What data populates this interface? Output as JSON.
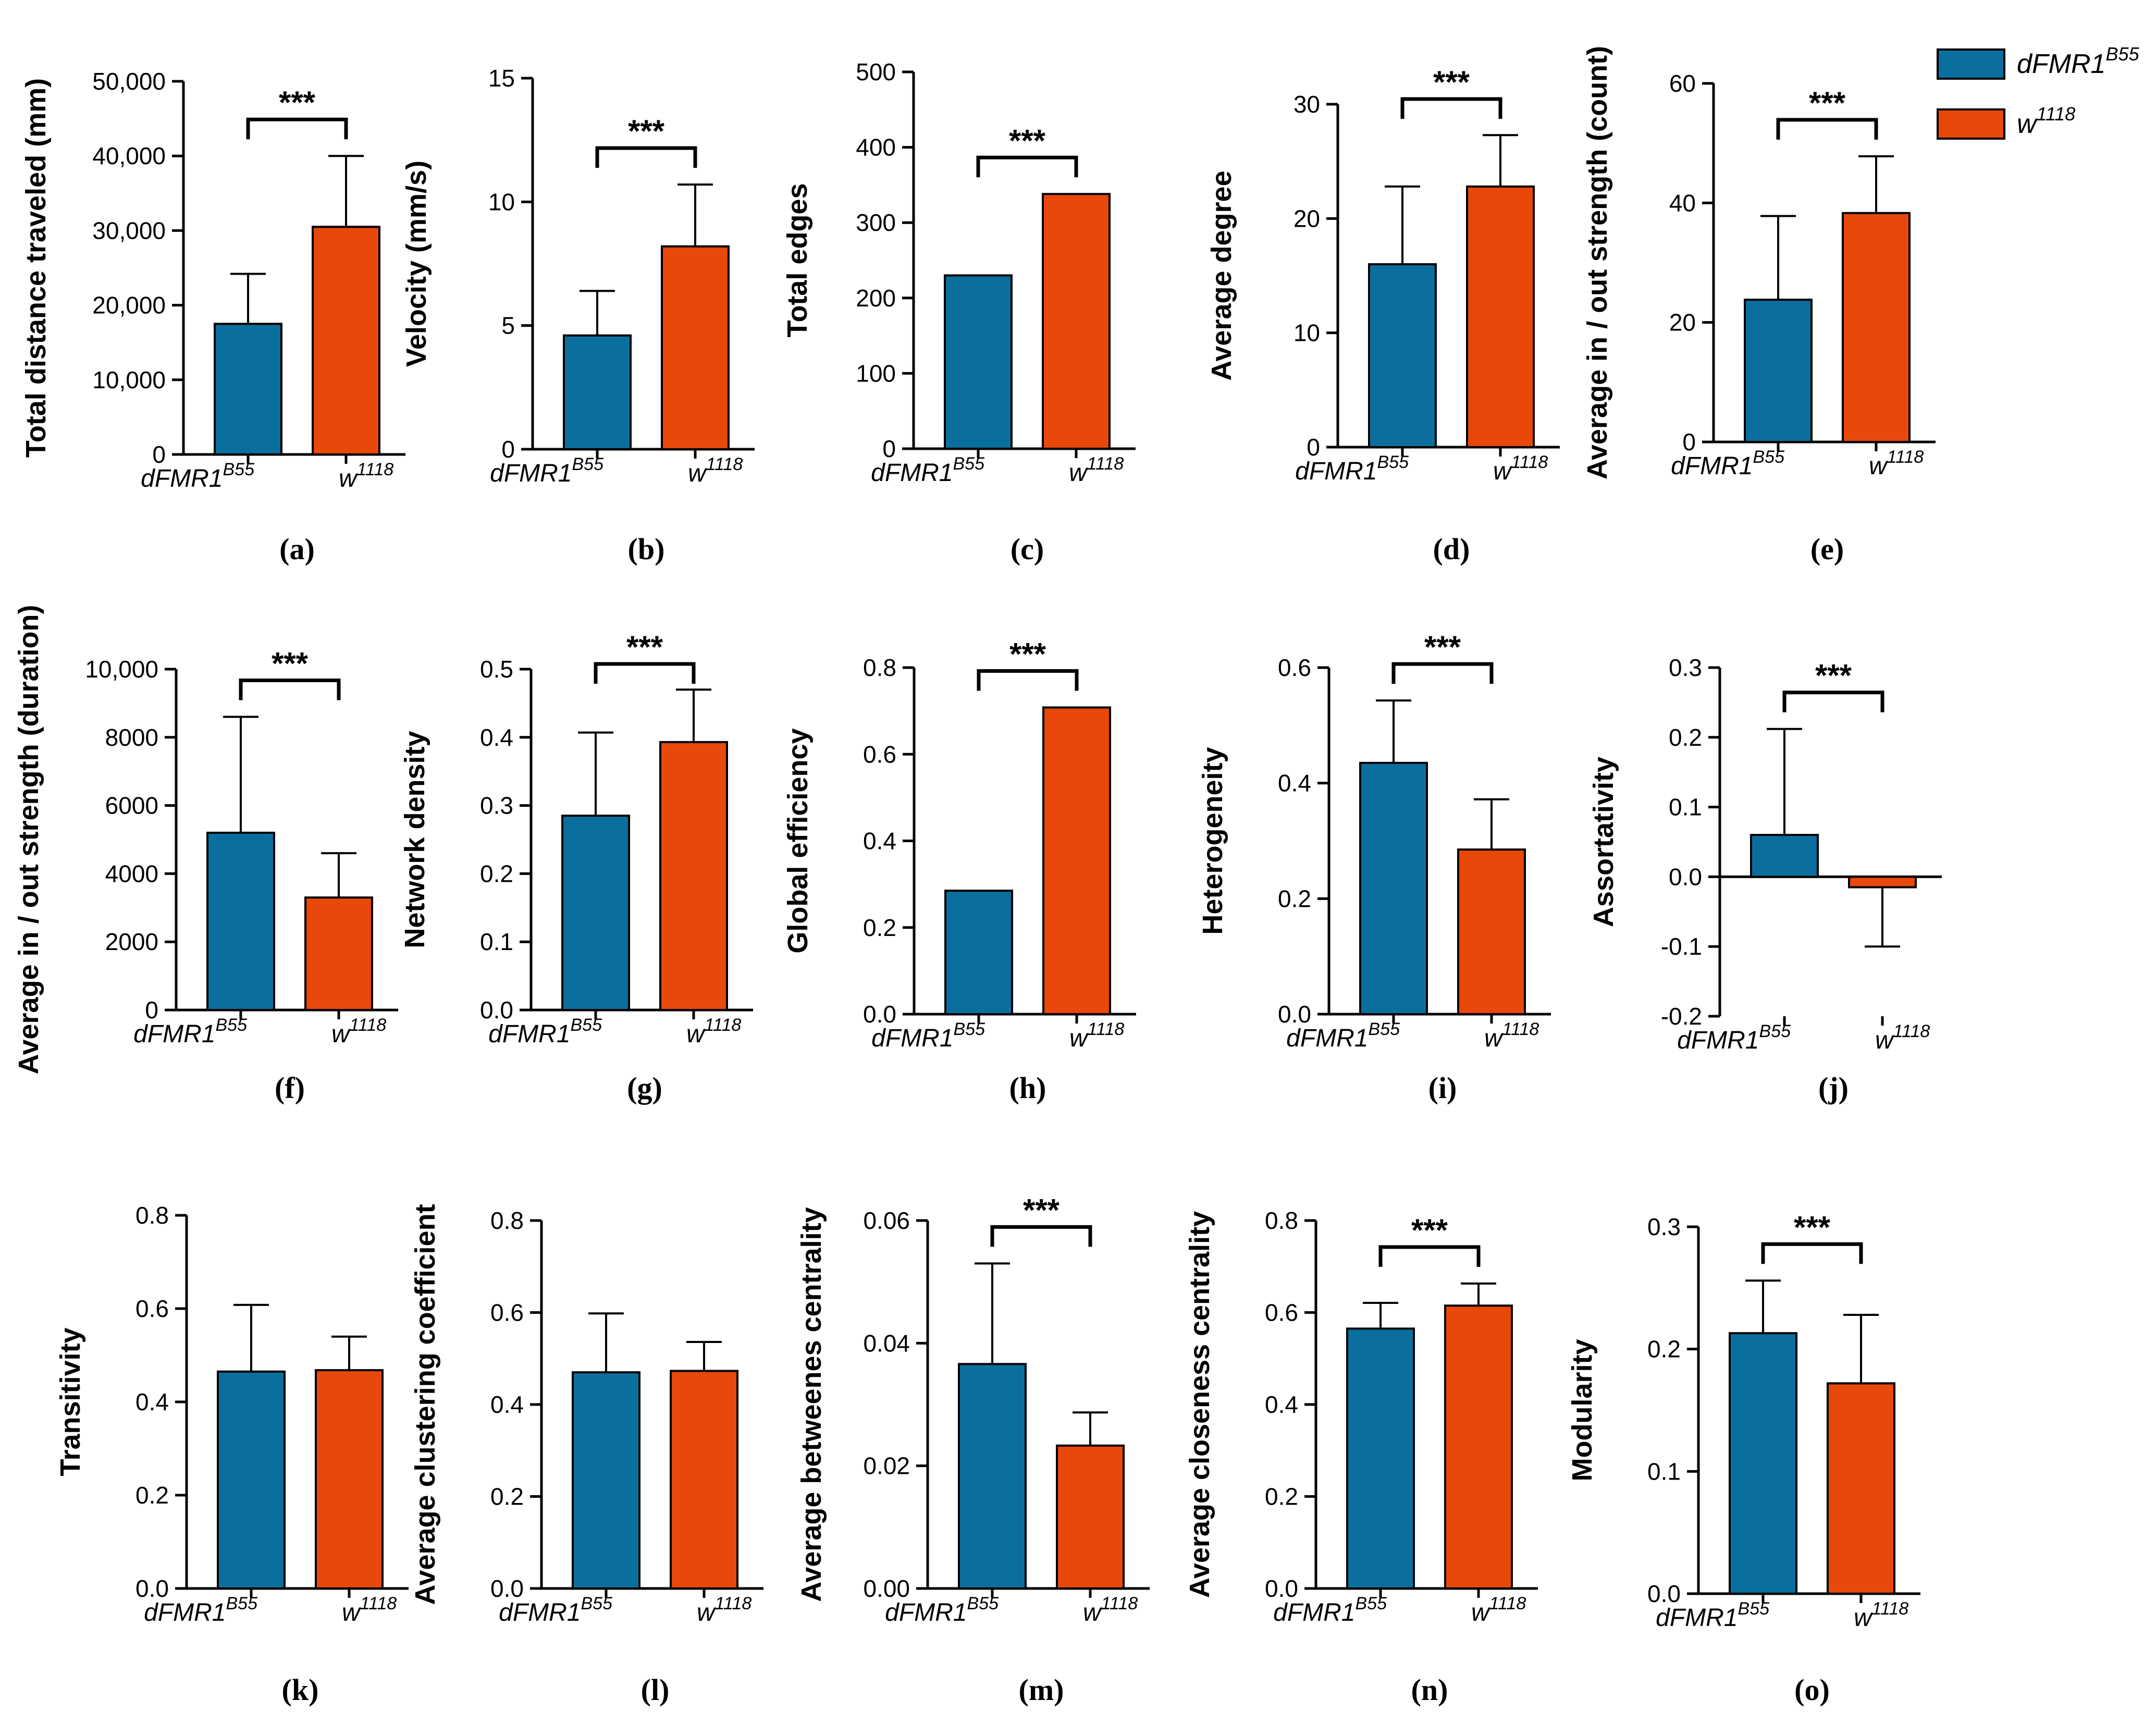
{
  "colors": {
    "dFMR1": "#0b6f9e",
    "w1118": "#e8480a"
  },
  "legend": {
    "items": [
      {
        "base": "dFMR1",
        "sup": "B55",
        "color": "#0b6f9e"
      },
      {
        "base": "w",
        "sup": "1118",
        "color": "#e8480a"
      }
    ]
  },
  "chart_data": [
    {
      "panel": "(a)",
      "type": "bar",
      "ylabel": "Total distance traveled (mm)",
      "ylim": [
        0,
        50000
      ],
      "yticks": [
        "0",
        "10,000",
        "20,000",
        "30,000",
        "40,000",
        "50,000"
      ],
      "categories": [
        {
          "base": "dFMR1",
          "sup": "B55",
          "italic": true
        },
        {
          "base": "w",
          "sup": "1118",
          "italic": false
        }
      ],
      "values": [
        17500,
        30500
      ],
      "errors": [
        6700,
        9500
      ],
      "significance": "***"
    },
    {
      "panel": "(b)",
      "type": "bar",
      "ylabel": "Velocity (mm/s)",
      "ylim": [
        0,
        15
      ],
      "yticks": [
        "0",
        "5",
        "10",
        "15"
      ],
      "categories": [
        {
          "base": "dFMR1",
          "sup": "B55",
          "italic": true
        },
        {
          "base": "w",
          "sup": "1118",
          "italic": false
        }
      ],
      "values": [
        4.6,
        8.2
      ],
      "errors": [
        1.8,
        2.5
      ],
      "significance": "***"
    },
    {
      "panel": "(c)",
      "type": "bar",
      "ylabel": "Total edges",
      "ylim": [
        0,
        500
      ],
      "yticks": [
        "0",
        "100",
        "200",
        "300",
        "400",
        "500"
      ],
      "categories": [
        {
          "base": "dFMR1",
          "sup": "B55",
          "italic": true
        },
        {
          "base": "w",
          "sup": "1118",
          "italic": false
        }
      ],
      "values": [
        230,
        338
      ],
      "errors": [
        0,
        0
      ],
      "significance": "***"
    },
    {
      "panel": "(d)",
      "type": "bar",
      "ylabel": "Average degree",
      "ylim": [
        0,
        30
      ],
      "yticks": [
        "0",
        "10",
        "20",
        "30"
      ],
      "categories": [
        {
          "base": "dFMR1",
          "sup": "B55",
          "italic": true
        },
        {
          "base": "w",
          "sup": "1118",
          "italic": true
        }
      ],
      "values": [
        16,
        22.8
      ],
      "errors": [
        6.8,
        4.5
      ],
      "significance": "***"
    },
    {
      "panel": "(e)",
      "type": "bar",
      "ylabel": "Average in / out strength (count)",
      "ylim": [
        0,
        60
      ],
      "yticks": [
        "0",
        "20",
        "40",
        "60"
      ],
      "categories": [
        {
          "base": "dFMR1",
          "sup": "B55",
          "italic": true
        },
        {
          "base": "w",
          "sup": "1118",
          "italic": true
        }
      ],
      "values": [
        23.8,
        38.3
      ],
      "errors": [
        14,
        9.5
      ],
      "significance": "***"
    },
    {
      "panel": "(f)",
      "type": "bar",
      "ylabel": "Average in / out strength (duration)",
      "ylim": [
        0,
        10000
      ],
      "yticks": [
        "0",
        "2000",
        "4000",
        "6000",
        "8000",
        "10,000"
      ],
      "categories": [
        {
          "base": "dFMR1",
          "sup": "B55",
          "italic": true
        },
        {
          "base": "w",
          "sup": "1118",
          "italic": true
        }
      ],
      "values": [
        5200,
        3300
      ],
      "errors": [
        3400,
        1300
      ],
      "significance": "***"
    },
    {
      "panel": "(g)",
      "type": "bar",
      "ylabel": "Network density",
      "ylim": [
        0,
        0.5
      ],
      "yticks": [
        "0.0",
        "0.1",
        "0.2",
        "0.3",
        "0.4",
        "0.5"
      ],
      "categories": [
        {
          "base": "dFMR1",
          "sup": "B55",
          "italic": true
        },
        {
          "base": "w",
          "sup": "1118",
          "italic": true
        }
      ],
      "values": [
        0.285,
        0.393
      ],
      "errors": [
        0.122,
        0.077
      ],
      "significance": "***"
    },
    {
      "panel": "(h)",
      "type": "bar",
      "ylabel": "Global efficiency",
      "ylim": [
        0,
        0.8
      ],
      "yticks": [
        "0.0",
        "0.2",
        "0.4",
        "0.6",
        "0.8"
      ],
      "categories": [
        {
          "base": "dFMR1",
          "sup": "B55",
          "italic": true
        },
        {
          "base": "w",
          "sup": "1118",
          "italic": true
        }
      ],
      "values": [
        0.285,
        0.708
      ],
      "errors": [
        0,
        0
      ],
      "significance": "***"
    },
    {
      "panel": "(i)",
      "type": "bar",
      "ylabel": "Heterogeneity",
      "ylim": [
        0,
        0.6
      ],
      "yticks": [
        "0.0",
        "0.2",
        "0.4",
        "0.6"
      ],
      "categories": [
        {
          "base": "dFMR1",
          "sup": "B55",
          "italic": true
        },
        {
          "base": "w",
          "sup": "1118",
          "italic": true
        }
      ],
      "values": [
        0.435,
        0.285
      ],
      "errors": [
        0.108,
        0.087
      ],
      "significance": "***"
    },
    {
      "panel": "(j)",
      "type": "bar",
      "ylabel": "Assortativity",
      "ylim": [
        -0.2,
        0.3
      ],
      "yticks": [
        "-0.2",
        "-0.1",
        "0.0",
        "0.1",
        "0.2",
        "0.3"
      ],
      "categories": [
        {
          "base": "dFMR1",
          "sup": "B55",
          "italic": true
        },
        {
          "base": "w",
          "sup": "1118",
          "italic": true
        }
      ],
      "values": [
        0.06,
        -0.015
      ],
      "errors": [
        0.152,
        0.085
      ],
      "significance": "***"
    },
    {
      "panel": "(k)",
      "type": "bar",
      "ylabel": "Transitivity",
      "ylim": [
        0,
        0.8
      ],
      "yticks": [
        "0.0",
        "0.2",
        "0.4",
        "0.6",
        "0.8"
      ],
      "categories": [
        {
          "base": "dFMR1",
          "sup": "B55",
          "italic": true
        },
        {
          "base": "w",
          "sup": "1118",
          "italic": true
        }
      ],
      "values": [
        0.465,
        0.468
      ],
      "errors": [
        0.143,
        0.072
      ],
      "significance": ""
    },
    {
      "panel": "(l)",
      "type": "bar",
      "ylabel": "Average clustering coefficient",
      "ylim": [
        0,
        0.8
      ],
      "yticks": [
        "0.0",
        "0.2",
        "0.4",
        "0.6",
        "0.8"
      ],
      "categories": [
        {
          "base": "dFMR1",
          "sup": "B55",
          "italic": true
        },
        {
          "base": "w",
          "sup": "1118",
          "italic": true
        }
      ],
      "values": [
        0.47,
        0.473
      ],
      "errors": [
        0.128,
        0.063
      ],
      "significance": ""
    },
    {
      "panel": "(m)",
      "type": "bar",
      "ylabel": "Average betweenes centrality",
      "ylim": [
        0,
        0.06
      ],
      "yticks": [
        "0.00",
        "0.02",
        "0.04",
        "0.06"
      ],
      "categories": [
        {
          "base": "dFMR1",
          "sup": "B55",
          "italic": true
        },
        {
          "base": "w",
          "sup": "1118",
          "italic": true
        }
      ],
      "values": [
        0.0366,
        0.0233
      ],
      "errors": [
        0.0164,
        0.0054
      ],
      "significance": "***"
    },
    {
      "panel": "(n)",
      "type": "bar",
      "ylabel": "Average closeness centrality",
      "ylim": [
        0,
        0.8
      ],
      "yticks": [
        "0.0",
        "0.2",
        "0.4",
        "0.6",
        "0.8"
      ],
      "categories": [
        {
          "base": "dFMR1",
          "sup": "B55",
          "italic": true
        },
        {
          "base": "w",
          "sup": "1118",
          "italic": true
        }
      ],
      "values": [
        0.565,
        0.615
      ],
      "errors": [
        0.056,
        0.048
      ],
      "significance": "***"
    },
    {
      "panel": "(o)",
      "type": "bar",
      "ylabel": "Modularity",
      "ylim": [
        0,
        0.3
      ],
      "yticks": [
        "0.0",
        "0.1",
        "0.2",
        "0.3"
      ],
      "categories": [
        {
          "base": "dFMR1",
          "sup": "B55",
          "italic": true
        },
        {
          "base": "w",
          "sup": "1118",
          "italic": true
        }
      ],
      "values": [
        0.213,
        0.172
      ],
      "errors": [
        0.043,
        0.056
      ],
      "significance": "***"
    }
  ]
}
